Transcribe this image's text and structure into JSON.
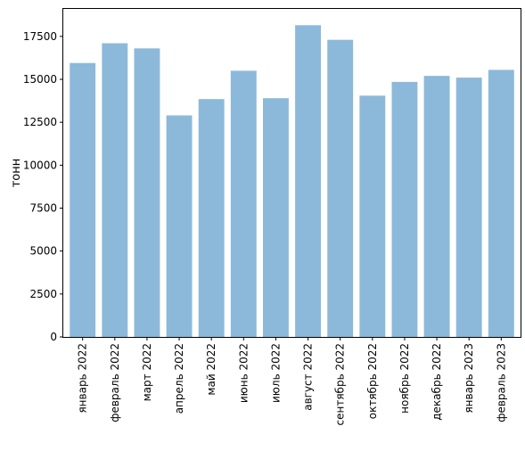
{
  "chart_data": {
    "type": "bar",
    "title": "",
    "xlabel": "",
    "ylabel": "тонн",
    "categories": [
      "январь 2022",
      "февраль 2022",
      "март 2022",
      "апрель 2022",
      "май 2022",
      "июнь 2022",
      "июль 2022",
      "август 2022",
      "сентябрь 2022",
      "октябрь 2022",
      "ноябрь 2022",
      "декабрь 2022",
      "январь 2023",
      "февраль 2023"
    ],
    "values": [
      15950,
      17100,
      16800,
      12900,
      13850,
      15500,
      13900,
      18150,
      17300,
      14050,
      14850,
      15200,
      15100,
      15550
    ],
    "yticks": [
      0,
      2500,
      5000,
      7500,
      10000,
      12500,
      15000,
      17500
    ],
    "ytick_labels": [
      "0",
      "2500",
      "5000",
      "7500",
      "10000",
      "12500",
      "15000",
      "17500"
    ],
    "ylim": [
      0,
      19100
    ],
    "bar_color": "#8cb9da",
    "grid": false,
    "legend": "none"
  }
}
